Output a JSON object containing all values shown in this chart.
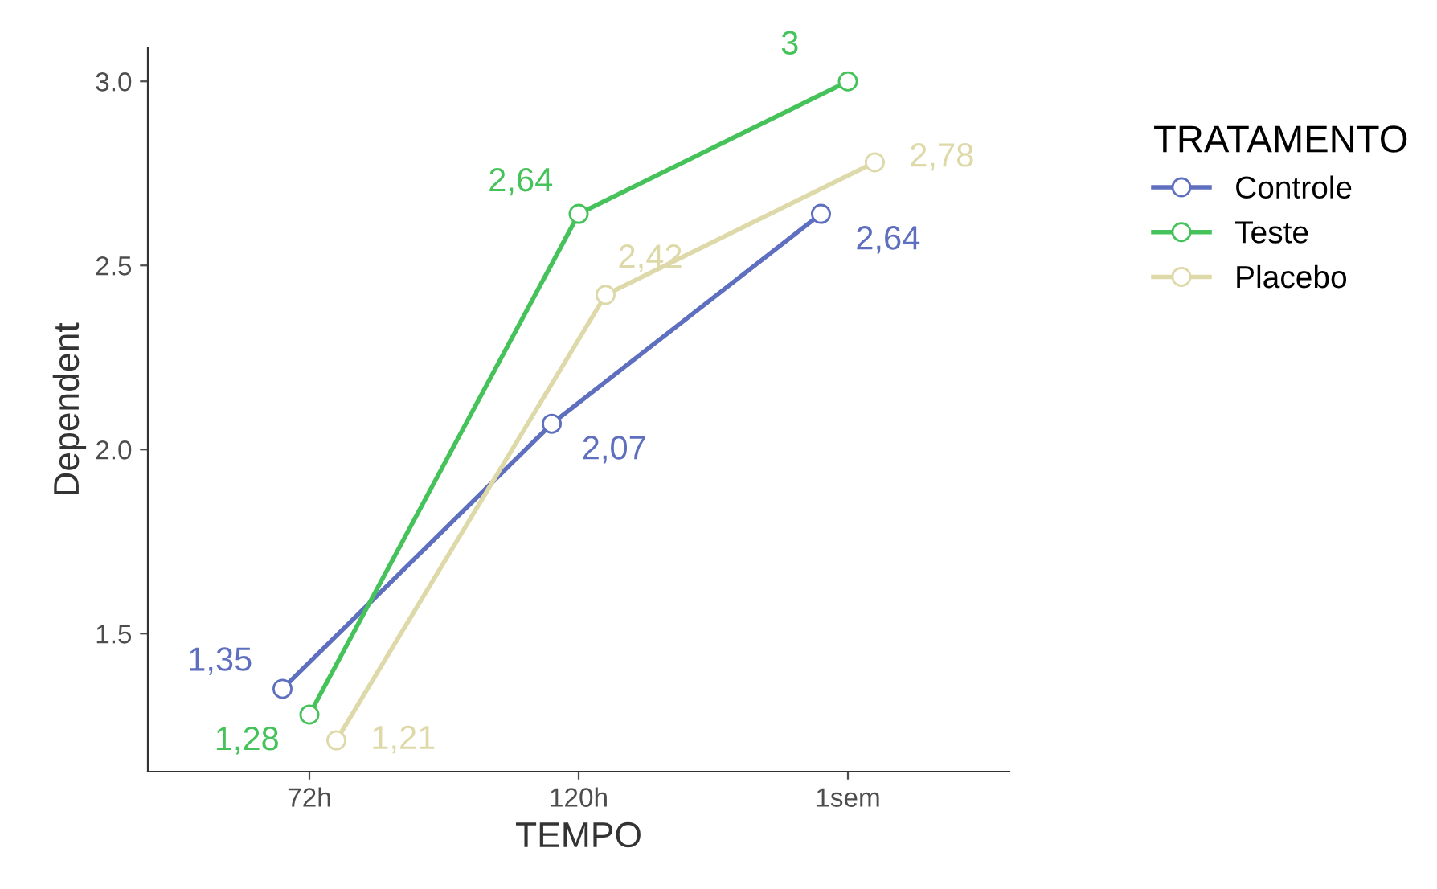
{
  "chart_data": {
    "type": "line",
    "xlabel": "TEMPO",
    "ylabel": "Dependent",
    "legend_title": "TRATAMENTO",
    "categories": [
      "72h",
      "120h",
      "1sem"
    ],
    "series": [
      {
        "name": "Controle",
        "color": "#5f6fbf",
        "values": [
          1.35,
          2.07,
          2.64
        ],
        "value_labels": [
          "1,35",
          "2,07",
          "2,64"
        ]
      },
      {
        "name": "Teste",
        "color": "#45c35a",
        "values": [
          1.28,
          2.64,
          3.0
        ],
        "value_labels": [
          "1,28",
          "2,64",
          "3"
        ]
      },
      {
        "name": "Placebo",
        "color": "#ded9a9",
        "values": [
          1.21,
          2.42,
          2.78
        ],
        "value_labels": [
          "1,21",
          "2,42",
          "2,78"
        ]
      }
    ],
    "ylim": [
      1.125,
      3.09
    ],
    "yticks": [
      {
        "value": 1.5,
        "label": "1.5"
      },
      {
        "value": 2.0,
        "label": "2.0"
      },
      {
        "value": 2.5,
        "label": "2.5"
      },
      {
        "value": 3.0,
        "label": "3.0"
      }
    ],
    "marker": "circle",
    "line_style": "solid",
    "grid": false,
    "legend": "right"
  }
}
